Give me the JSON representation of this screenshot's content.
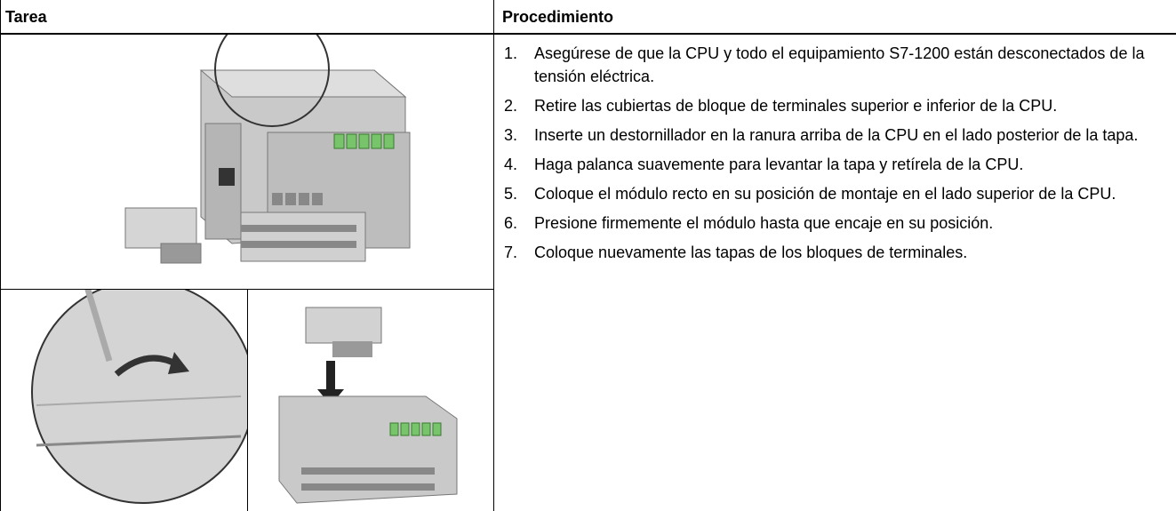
{
  "header": {
    "columns": [
      "Tarea",
      "Procedimiento"
    ]
  },
  "steps": [
    {
      "number": "1.",
      "text": "Asegúrese de que la CPU y todo el equipamiento S7-1200 están desconectados de la tensión eléctrica."
    },
    {
      "number": "2.",
      "text": "Retire las cubiertas de bloque de terminales superior e inferior de la CPU."
    },
    {
      "number": "3.",
      "text": "Inserte un destornillador en la ranura arriba de la CPU en el lado posterior de la tapa."
    },
    {
      "number": "4.",
      "text": "Haga palanca suavemente para levantar la tapa y retírela de la CPU."
    },
    {
      "number": "5.",
      "text": "Coloque el módulo recto en su posición de montaje en el lado superior de la CPU."
    },
    {
      "number": "6.",
      "text": "Presione firmemente el módulo hasta que encaje en su posición."
    },
    {
      "number": "7.",
      "text": "Coloque nuevamente las tapas de los bloques de terminales."
    }
  ]
}
